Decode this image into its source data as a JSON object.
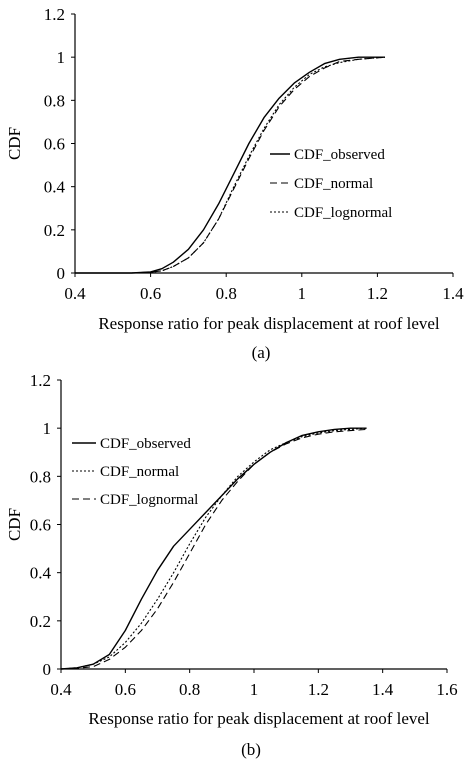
{
  "chart_data": [
    {
      "type": "line",
      "caption": "(a)",
      "xlabel": "Response ratio for peak displacement at roof level",
      "ylabel": "CDF",
      "xlim": [
        0.4,
        1.4
      ],
      "ylim": [
        0,
        1.2
      ],
      "xticks": [
        "0.4",
        "0.6",
        "0.8",
        "1",
        "1.2",
        "1.4"
      ],
      "yticks": [
        "0",
        "0.2",
        "0.4",
        "0.6",
        "0.8",
        "1",
        "1.2"
      ],
      "legend_position": "center-right",
      "grid": false,
      "series": [
        {
          "name": "CDF_observed",
          "style": "solid",
          "x": [
            0.4,
            0.55,
            0.6,
            0.63,
            0.66,
            0.7,
            0.74,
            0.78,
            0.82,
            0.86,
            0.9,
            0.94,
            0.98,
            1.02,
            1.06,
            1.1,
            1.15,
            1.22
          ],
          "y": [
            0.0,
            0.0,
            0.005,
            0.02,
            0.05,
            0.11,
            0.2,
            0.32,
            0.46,
            0.6,
            0.72,
            0.81,
            0.88,
            0.93,
            0.97,
            0.99,
            1.0,
            1.0
          ]
        },
        {
          "name": "CDF_normal",
          "style": "dash",
          "x": [
            0.4,
            0.55,
            0.6,
            0.63,
            0.66,
            0.7,
            0.74,
            0.78,
            0.82,
            0.86,
            0.9,
            0.94,
            0.98,
            1.02,
            1.06,
            1.1,
            1.15,
            1.22
          ],
          "y": [
            0.0,
            0.0,
            0.004,
            0.01,
            0.03,
            0.07,
            0.14,
            0.25,
            0.39,
            0.53,
            0.66,
            0.77,
            0.85,
            0.91,
            0.95,
            0.98,
            0.99,
            1.0
          ]
        },
        {
          "name": "CDF_lognormal",
          "style": "dot",
          "x": [
            0.4,
            0.55,
            0.6,
            0.63,
            0.66,
            0.7,
            0.74,
            0.78,
            0.82,
            0.86,
            0.9,
            0.94,
            0.98,
            1.02,
            1.06,
            1.1,
            1.15,
            1.22
          ],
          "y": [
            0.0,
            0.0,
            0.003,
            0.01,
            0.03,
            0.07,
            0.14,
            0.25,
            0.4,
            0.54,
            0.67,
            0.78,
            0.86,
            0.92,
            0.955,
            0.975,
            0.99,
            1.0
          ]
        }
      ]
    },
    {
      "type": "line",
      "caption": "(b)",
      "xlabel": "Response ratio for peak displacement at roof level",
      "ylabel": "CDF",
      "xlim": [
        0.4,
        1.6
      ],
      "ylim": [
        0,
        1.2
      ],
      "xticks": [
        "0.4",
        "0.6",
        "0.8",
        "1",
        "1.2",
        "1.4",
        "1.6"
      ],
      "yticks": [
        "0",
        "0.2",
        "0.4",
        "0.6",
        "0.8",
        "1",
        "1.2"
      ],
      "legend_position": "top-left",
      "grid": false,
      "series": [
        {
          "name": "CDF_observed",
          "style": "solid",
          "x": [
            0.4,
            0.45,
            0.5,
            0.55,
            0.6,
            0.65,
            0.7,
            0.75,
            0.8,
            0.85,
            0.9,
            0.95,
            1.0,
            1.05,
            1.1,
            1.15,
            1.2,
            1.25,
            1.3,
            1.35
          ],
          "y": [
            0.0,
            0.005,
            0.02,
            0.06,
            0.16,
            0.29,
            0.41,
            0.51,
            0.58,
            0.65,
            0.72,
            0.79,
            0.85,
            0.9,
            0.94,
            0.97,
            0.985,
            0.995,
            1.0,
            1.0
          ]
        },
        {
          "name": "CDF_normal",
          "style": "dot",
          "x": [
            0.4,
            0.45,
            0.5,
            0.55,
            0.6,
            0.65,
            0.7,
            0.75,
            0.8,
            0.85,
            0.9,
            0.95,
            1.0,
            1.05,
            1.1,
            1.15,
            1.2,
            1.25,
            1.3,
            1.35
          ],
          "y": [
            0.0,
            0.005,
            0.02,
            0.05,
            0.11,
            0.19,
            0.29,
            0.4,
            0.52,
            0.63,
            0.72,
            0.8,
            0.86,
            0.91,
            0.94,
            0.965,
            0.98,
            0.99,
            0.995,
            1.0
          ]
        },
        {
          "name": "CDF_lognormal",
          "style": "dash",
          "x": [
            0.4,
            0.45,
            0.5,
            0.55,
            0.6,
            0.65,
            0.7,
            0.75,
            0.8,
            0.85,
            0.9,
            0.95,
            1.0,
            1.05,
            1.1,
            1.15,
            1.2,
            1.25,
            1.3,
            1.35
          ],
          "y": [
            0.0,
            0.003,
            0.01,
            0.04,
            0.09,
            0.16,
            0.25,
            0.36,
            0.48,
            0.6,
            0.7,
            0.78,
            0.85,
            0.9,
            0.935,
            0.96,
            0.975,
            0.985,
            0.99,
            0.995
          ]
        }
      ]
    }
  ]
}
